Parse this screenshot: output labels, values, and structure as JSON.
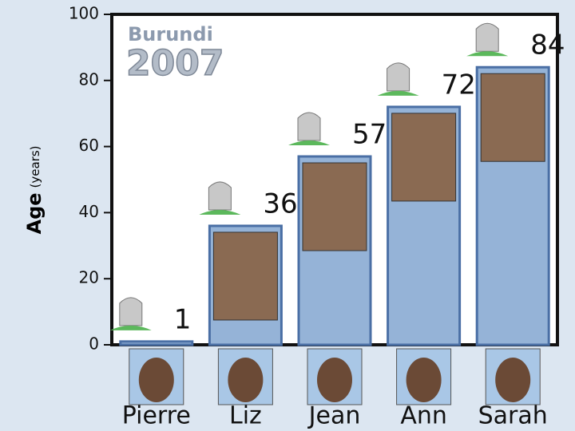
{
  "chart_data": {
    "type": "bar",
    "title": "Burundi",
    "subtitle": "2007",
    "y_label": "Age",
    "y_label_unit": "(years)",
    "categories": [
      "Pierre",
      "Liz",
      "Jean",
      "Ann",
      "Sarah"
    ],
    "values": [
      1,
      36,
      57,
      72,
      84
    ],
    "color": "#95b3d7",
    "ylim": [
      0,
      100
    ],
    "yticks": [
      0,
      20,
      40,
      60,
      80,
      100
    ]
  }
}
